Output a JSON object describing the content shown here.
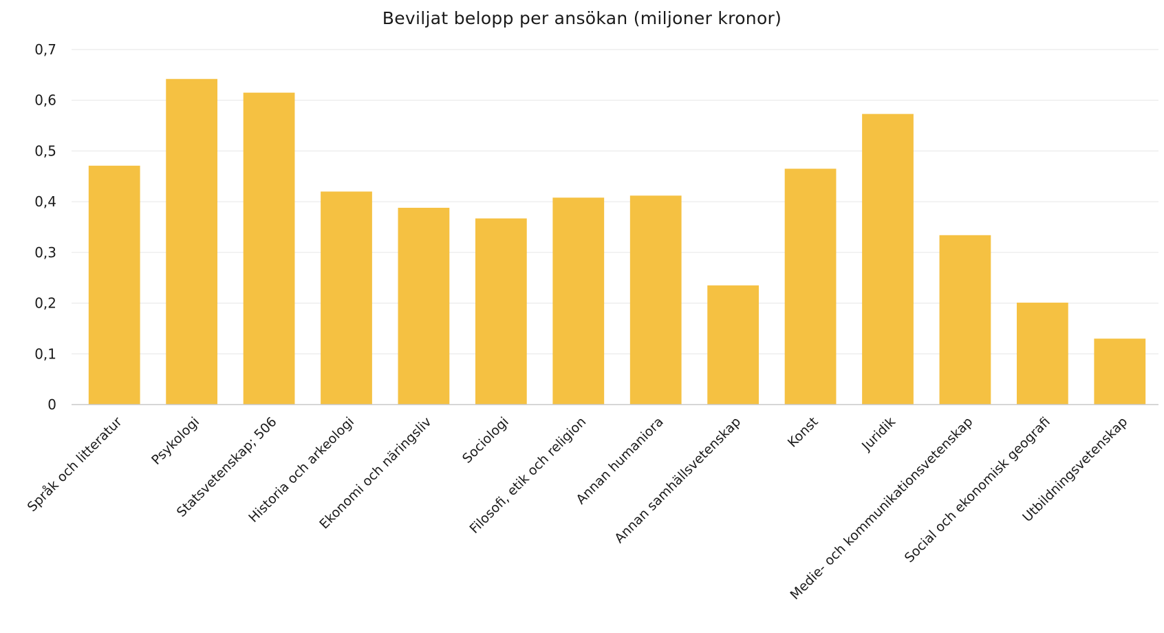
{
  "chart_data": {
    "type": "bar",
    "title": "Beviljat belopp per ansökan (miljoner kronor)",
    "xlabel": "",
    "ylabel": "",
    "ylim": [
      0,
      0.7
    ],
    "yticks": [
      "0",
      "0,1",
      "0,2",
      "0,3",
      "0,4",
      "0,5",
      "0,6",
      "0,7"
    ],
    "grid": true,
    "legend": "none",
    "bar_color": "#F5C142",
    "categories": [
      "Språk och litteratur",
      "Psykologi",
      "Statsvetenskap; 506",
      "Historia och arkeologi",
      "Ekonomi och näringsliv",
      "Sociologi",
      "Filosofi, etik och religion",
      "Annan humaniora",
      "Annan samhällsvetenskap",
      "Konst",
      "Juridik",
      "Medie- och kommunikationsvetenskap",
      "Social och ekonomisk geografi",
      "Utbildningsvetenskap"
    ],
    "values": [
      0.471,
      0.642,
      0.615,
      0.42,
      0.388,
      0.367,
      0.408,
      0.412,
      0.235,
      0.465,
      0.573,
      0.334,
      0.201,
      0.13
    ]
  }
}
